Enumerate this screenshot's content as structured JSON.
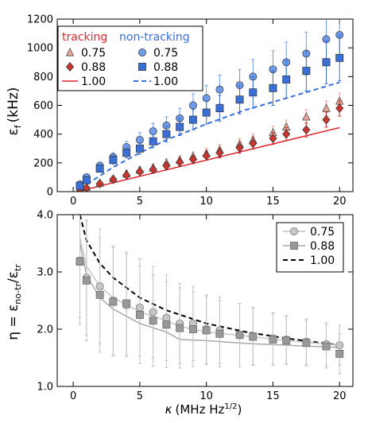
{
  "chart_data": [
    {
      "type": "scatter",
      "ylabel": "ε_f (kHz)",
      "ylabel_main": "ε",
      "ylabel_sub": "f",
      "ylabel_unit": "(kHz)",
      "xlim": [
        -1.2,
        21
      ],
      "ylim": [
        0,
        1200
      ],
      "xticks": [
        0,
        5,
        10,
        15,
        20
      ],
      "yticks": [
        0,
        200,
        400,
        600,
        800,
        1000,
        1200
      ],
      "xticklabels": [
        "0",
        "5",
        "10",
        "15",
        "20"
      ],
      "yticklabels": [
        "0",
        "200",
        "400",
        "600",
        "800",
        "1000",
        "1200"
      ],
      "legend": {
        "position": "top-left",
        "headers": [
          "tracking",
          "non-tracking"
        ],
        "header_colors": [
          "#e3222e",
          "#3a6fd8"
        ],
        "labels": [
          "0.75",
          "0.88",
          "1.00"
        ]
      },
      "x": [
        0.5,
        1,
        2,
        3,
        4,
        5,
        6,
        7,
        8,
        9,
        10,
        11,
        12.5,
        13.5,
        15,
        16,
        17.5,
        19,
        20
      ],
      "series": [
        {
          "name": "0.75",
          "group": "tracking",
          "marker": "triangle",
          "color": "#e8a89a",
          "y": [
            20,
            30,
            60,
            90,
            125,
            150,
            165,
            200,
            220,
            245,
            265,
            290,
            330,
            360,
            410,
            450,
            520,
            580,
            630
          ],
          "err": [
            8,
            10,
            15,
            18,
            20,
            22,
            25,
            28,
            30,
            32,
            35,
            38,
            40,
            42,
            45,
            48,
            50,
            52,
            55
          ]
        },
        {
          "name": "0.88",
          "group": "tracking",
          "marker": "diamond",
          "color": "#c8362f",
          "y": [
            15,
            25,
            55,
            85,
            115,
            140,
            155,
            180,
            205,
            225,
            250,
            270,
            305,
            335,
            370,
            400,
            430,
            500,
            580
          ],
          "err": [
            8,
            10,
            14,
            16,
            18,
            20,
            22,
            25,
            28,
            30,
            32,
            35,
            38,
            40,
            42,
            45,
            50,
            52,
            55
          ]
        },
        {
          "name": "1.00",
          "group": "tracking",
          "marker": "line",
          "color": "#e3222e",
          "line": [
            [
              0.5,
              5
            ],
            [
              20,
              445
            ]
          ]
        },
        {
          "name": "0.75",
          "group": "non-tracking",
          "marker": "circle",
          "color": "#6f9be8",
          "y": [
            50,
            100,
            180,
            240,
            310,
            360,
            420,
            460,
            510,
            600,
            650,
            710,
            740,
            800,
            850,
            900,
            960,
            1060,
            1090
          ],
          "err": [
            12,
            18,
            25,
            30,
            40,
            50,
            55,
            60,
            70,
            80,
            90,
            100,
            110,
            120,
            130,
            140,
            150,
            160,
            170
          ]
        },
        {
          "name": "0.88",
          "group": "non-tracking",
          "marker": "square",
          "color": "#3a6fd8",
          "y": [
            40,
            80,
            160,
            220,
            270,
            300,
            350,
            400,
            450,
            500,
            550,
            580,
            640,
            690,
            720,
            780,
            840,
            900,
            930
          ],
          "err": [
            12,
            16,
            22,
            28,
            35,
            40,
            45,
            55,
            60,
            70,
            80,
            90,
            100,
            110,
            120,
            130,
            140,
            150,
            160
          ]
        },
        {
          "name": "1.00",
          "group": "non-tracking",
          "marker": "dashed",
          "color": "#3a6fd8",
          "line": [
            [
              0.5,
              30
            ],
            [
              1,
              50
            ],
            [
              2,
              110
            ],
            [
              3,
              170
            ],
            [
              5,
              270
            ],
            [
              7,
              360
            ],
            [
              10,
              470
            ],
            [
              13,
              570
            ],
            [
              16,
              650
            ],
            [
              20,
              760
            ]
          ]
        }
      ]
    },
    {
      "type": "scatter",
      "ylabel": "η = ε_no-tr / ε_tr",
      "ylabel_eta": "η = ε",
      "ylabel_sub1": "no-tr",
      "ylabel_mid": "/ε",
      "ylabel_sub2": "tr",
      "xlabel": "κ (MHz Hz^1/2)",
      "xlabel_kappa": "κ",
      "xlabel_unit": "(MHz Hz",
      "xlabel_sup": "1/2",
      "xlabel_close": ")",
      "xlim": [
        -1.2,
        21
      ],
      "ylim": [
        1.0,
        4.0
      ],
      "xticks": [
        0,
        5,
        10,
        15,
        20
      ],
      "yticks": [
        1.0,
        2.0,
        3.0,
        4.0
      ],
      "xticklabels": [
        "0",
        "5",
        "10",
        "15",
        "20"
      ],
      "yticklabels": [
        "1.0",
        "2.0",
        "3.0",
        "4.0"
      ],
      "legend": {
        "position": "top-right",
        "labels": [
          "0.75",
          "0.88",
          "1.00"
        ]
      },
      "x": [
        0.5,
        1,
        2,
        3,
        4,
        5,
        6,
        7,
        8,
        9,
        10,
        11,
        12.5,
        13.5,
        15,
        16,
        17.5,
        19,
        20
      ],
      "series": [
        {
          "name": "0.75",
          "marker": "circle",
          "color": "#c8c8c8",
          "y": [
            3.2,
            2.9,
            2.75,
            2.5,
            2.42,
            2.38,
            2.3,
            2.2,
            2.1,
            2.1,
            2.0,
            1.98,
            1.9,
            1.88,
            1.84,
            1.82,
            1.78,
            1.74,
            1.72
          ],
          "err": [
            1.0,
            1.0,
            1.0,
            0.95,
            0.9,
            0.85,
            0.8,
            0.75,
            0.7,
            0.65,
            0.6,
            0.58,
            0.55,
            0.5,
            0.45,
            0.42,
            0.4,
            0.38,
            0.35
          ]
        },
        {
          "name": "0.88",
          "marker": "square",
          "color": "#999999",
          "y": [
            3.18,
            2.85,
            2.6,
            2.48,
            2.45,
            2.25,
            2.15,
            2.08,
            2.02,
            2.0,
            1.98,
            1.92,
            1.9,
            1.87,
            1.82,
            1.8,
            1.76,
            1.7,
            1.57
          ],
          "err": [
            1.1,
            1.05,
            1.0,
            0.95,
            0.9,
            0.85,
            0.8,
            0.75,
            0.7,
            0.65,
            0.6,
            0.58,
            0.55,
            0.5,
            0.45,
            0.42,
            0.4,
            0.38,
            0.35
          ]
        },
        {
          "name": "1.00",
          "marker": "dashed",
          "color": "#000000",
          "line": [
            [
              0.5,
              4.0
            ],
            [
              1,
              3.55
            ],
            [
              2,
              3.15
            ],
            [
              3,
              2.9
            ],
            [
              5,
              2.55
            ],
            [
              7,
              2.33
            ],
            [
              10,
              2.1
            ],
            [
              13,
              1.95
            ],
            [
              16,
              1.84
            ],
            [
              20,
              1.72
            ]
          ]
        },
        {
          "name": "fit-0.75",
          "marker": "line",
          "color": "#c8c8c8",
          "line": [
            [
              0.5,
              3.6
            ],
            [
              1,
              3.1
            ],
            [
              2,
              2.75
            ],
            [
              3,
              2.55
            ],
            [
              5,
              2.3
            ],
            [
              7,
              2.15
            ],
            [
              8,
              2.05
            ],
            [
              10,
              1.95
            ],
            [
              13,
              1.88
            ],
            [
              16,
              1.8
            ],
            [
              20,
              1.72
            ]
          ]
        },
        {
          "name": "fit-0.88",
          "marker": "line",
          "color": "#aaaaaa",
          "line": [
            [
              0.5,
              3.5
            ],
            [
              1,
              2.95
            ],
            [
              2,
              2.55
            ],
            [
              3,
              2.35
            ],
            [
              5,
              2.1
            ],
            [
              7,
              1.95
            ],
            [
              8,
              1.82
            ],
            [
              10,
              1.8
            ],
            [
              13,
              1.75
            ],
            [
              16,
              1.72
            ],
            [
              20,
              1.68
            ]
          ]
        }
      ]
    }
  ]
}
